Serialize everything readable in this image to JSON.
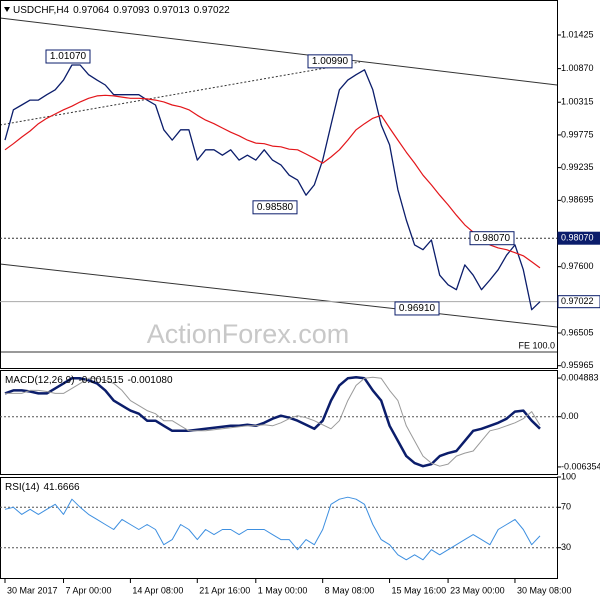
{
  "chart_data": [
    {
      "type": "line",
      "title": "USDCHF,H4",
      "last_bar": {
        "open": 0.97064,
        "high": 0.97093,
        "low": 0.97013,
        "close": 0.97022
      },
      "watermark": "ActionForex.com",
      "fib_label": "FE 100.0",
      "categories": [
        "30 Mar 2017",
        null,
        null,
        null,
        null,
        null,
        null,
        "7 Apr 00:00",
        null,
        null,
        null,
        null,
        null,
        null,
        null,
        "14 Apr 08:00",
        null,
        null,
        null,
        null,
        null,
        null,
        null,
        "21 Apr 16:00",
        null,
        null,
        null,
        null,
        null,
        null,
        "1 May 00:00",
        null,
        null,
        null,
        null,
        null,
        null,
        null,
        "8 May 08:00",
        null,
        null,
        null,
        null,
        null,
        null,
        null,
        "15 May 16:00",
        null,
        null,
        null,
        null,
        null,
        null,
        "23 May 00:00",
        null,
        null,
        null,
        null,
        null,
        null,
        null,
        "30 May 08:00",
        null,
        null,
        null
      ],
      "series": [
        {
          "color": "#0b1d6b",
          "values": [
            0.9969,
            1.0019,
            1.0027,
            1.0035,
            1.0035,
            1.0044,
            1.0052,
            1.0068,
            1.0093,
            1.0093,
            1.0077,
            1.0068,
            1.006,
            1.0044,
            1.0044,
            1.0044,
            1.0044,
            1.0035,
            1.0027,
            0.9986,
            0.9969,
            0.9986,
            0.9986,
            0.9936,
            0.9953,
            0.9953,
            0.9944,
            0.9953,
            0.9936,
            0.9944,
            0.9936,
            0.9953,
            0.9936,
            0.9928,
            0.9911,
            0.9903,
            0.9878,
            0.9895,
            0.9936,
            0.9994,
            1.0052,
            1.0068,
            1.0077,
            1.0085,
            1.0052,
            0.9994,
            0.9961,
            0.9887,
            0.9837,
            0.9796,
            0.9788,
            0.9804,
            0.9746,
            0.973,
            0.9722,
            0.9763,
            0.9746,
            0.9722,
            0.9738,
            0.9755,
            0.9779,
            0.9796,
            0.9755,
            0.9689,
            0.97022
          ]
        },
        {
          "color": "#e3161b",
          "values": [
            0.9953,
            0.9963,
            0.9974,
            0.9984,
            0.9996,
            1.0005,
            1.0012,
            1.0019,
            1.0025,
            1.0032,
            1.0038,
            1.0042,
            1.0043,
            1.0042,
            1.004,
            1.0038,
            1.0038,
            1.0037,
            1.0035,
            1.0032,
            1.0027,
            1.0024,
            1.0019,
            1.001,
            1.0002,
            0.9996,
            0.9989,
            0.9982,
            0.9976,
            0.9969,
            0.9964,
            0.9963,
            0.9959,
            0.9958,
            0.9954,
            0.9953,
            0.9946,
            0.9939,
            0.9931,
            0.9941,
            0.9953,
            0.9969,
            0.9986,
            0.9996,
            1.0005,
            1.001,
            0.9989,
            0.9969,
            0.9949,
            0.9931,
            0.9911,
            0.9895,
            0.9878,
            0.9862,
            0.9845,
            0.9829,
            0.9817,
            0.9807,
            0.9796,
            0.9791,
            0.9788,
            0.9783,
            0.9778,
            0.9768,
            0.9758
          ]
        }
      ],
      "ylim": [
        0.95927,
        1.02003
      ],
      "yticks": [
        1.01425,
        {
          "value": 1.0087,
          "label": "1.00870"
        },
        1.00315,
        0.99775,
        0.99235,
        0.98695,
        {
          "value": 0.976,
          "label": "0.97600"
        },
        0.96505,
        0.95965
      ],
      "grid": false,
      "hlines": [
        {
          "value": 0.9807,
          "label": "0.98070"
        },
        {
          "value": 0.97022,
          "label": "0.97022"
        }
      ],
      "annotations": [
        {
          "value": 1.0107,
          "label": "1.01070"
        },
        {
          "value": 1.0099,
          "label": "1.00990"
        },
        {
          "value": 0.9858,
          "label": "0.98580"
        },
        {
          "value": 0.9807,
          "label": "0.98070"
        },
        {
          "value": 0.9691,
          "label": "0.96910"
        }
      ]
    },
    {
      "type": "line",
      "title": "MACD(12,26,9)",
      "indicator_values": [
        -0.001515,
        {
          "value": -0.00108,
          "label": "-0.001080"
        }
      ],
      "series": [
        {
          "color": "#0b1d6b",
          "width": 2.5,
          "values": [
            0.00294,
            0.00332,
            0.00332,
            0.00319,
            0.00294,
            0.00294,
            0.00358,
            0.00421,
            0.00485,
            0.00485,
            0.0046,
            0.00421,
            0.00332,
            0.00204,
            0.0014,
            0.00077,
            0.00038,
            -0.00051,
            -0.00051,
            -0.00115,
            -0.00179,
            -0.00179,
            -0.00179,
            -0.00166,
            -0.00153,
            -0.0014,
            -0.00128,
            -0.00115,
            -0.00115,
            -0.00102,
            -0.00115,
            -0.00077,
            -0.00026,
            0.00013,
            -0.00013,
            -0.00051,
            -0.00102,
            -0.00153,
            -0.00051,
            0.00204,
            0.00396,
            0.00485,
            0.00498,
            0.00485,
            0.00332,
            0.00204,
            -0.00115,
            -0.00306,
            -0.00498,
            -0.00587,
            -0.00626,
            -0.006,
            -0.00498,
            -0.0046,
            -0.00434,
            -0.00306,
            -0.00179,
            -0.00153,
            -0.00115,
            -0.00077,
            -0.00026,
            0.00064,
            0.00077,
            -0.00051,
            -0.001515
          ]
        },
        {
          "color": "#9a9a9a",
          "width": 1,
          "values": [
            0.00294,
            0.00294,
            0.00294,
            0.00332,
            0.00332,
            0.00319,
            0.00294,
            0.00294,
            0.00358,
            0.00421,
            0.00485,
            0.00485,
            0.0046,
            0.00421,
            0.00332,
            0.00204,
            0.0014,
            0.00077,
            0.00038,
            -0.00051,
            -0.00051,
            -0.00115,
            -0.00179,
            -0.00179,
            -0.00179,
            -0.00166,
            -0.00153,
            -0.0014,
            -0.00128,
            -0.00115,
            -0.00115,
            -0.00102,
            -0.00115,
            -0.00077,
            -0.00026,
            0.00013,
            -0.00013,
            -0.00051,
            -0.00102,
            -0.00153,
            -0.00051,
            0.00204,
            0.00396,
            0.00485,
            0.00498,
            0.00485,
            0.00332,
            0.00204,
            -0.00115,
            -0.00306,
            -0.00498,
            -0.00587,
            -0.00626,
            -0.006,
            -0.00498,
            -0.0046,
            -0.00434,
            -0.00306,
            -0.00179,
            -0.00153,
            -0.00115,
            -0.00077,
            -0.00026,
            0.00064,
            -0.00108
          ]
        }
      ],
      "ylim": [
        -0.007248,
        0.005905
      ],
      "yticks": [
        0.004883,
        {
          "value": 0,
          "label": "0.00"
        },
        -0.006354
      ],
      "grid": true
    },
    {
      "type": "line",
      "title": "RSI(14)",
      "indicator_values": [
        41.6666
      ],
      "series": [
        {
          "color": "#3d8fe0",
          "width": 1,
          "values": [
            68,
            70,
            63,
            68,
            63,
            68,
            73,
            63,
            78,
            70,
            63,
            58,
            53,
            48,
            58,
            53,
            48,
            53,
            48,
            33,
            38,
            53,
            48,
            38,
            48,
            43,
            48,
            48,
            43,
            48,
            48,
            48,
            43,
            38,
            38,
            28,
            38,
            33,
            48,
            73,
            78,
            80,
            78,
            73,
            53,
            38,
            33,
            23,
            18,
            23,
            18,
            28,
            23,
            28,
            33,
            38,
            43,
            38,
            33,
            48,
            53,
            58,
            48,
            33,
            41.6666
          ]
        }
      ],
      "ylim": [
        0,
        100
      ],
      "yticks": [
        30,
        70,
        100
      ],
      "grid": true
    }
  ]
}
